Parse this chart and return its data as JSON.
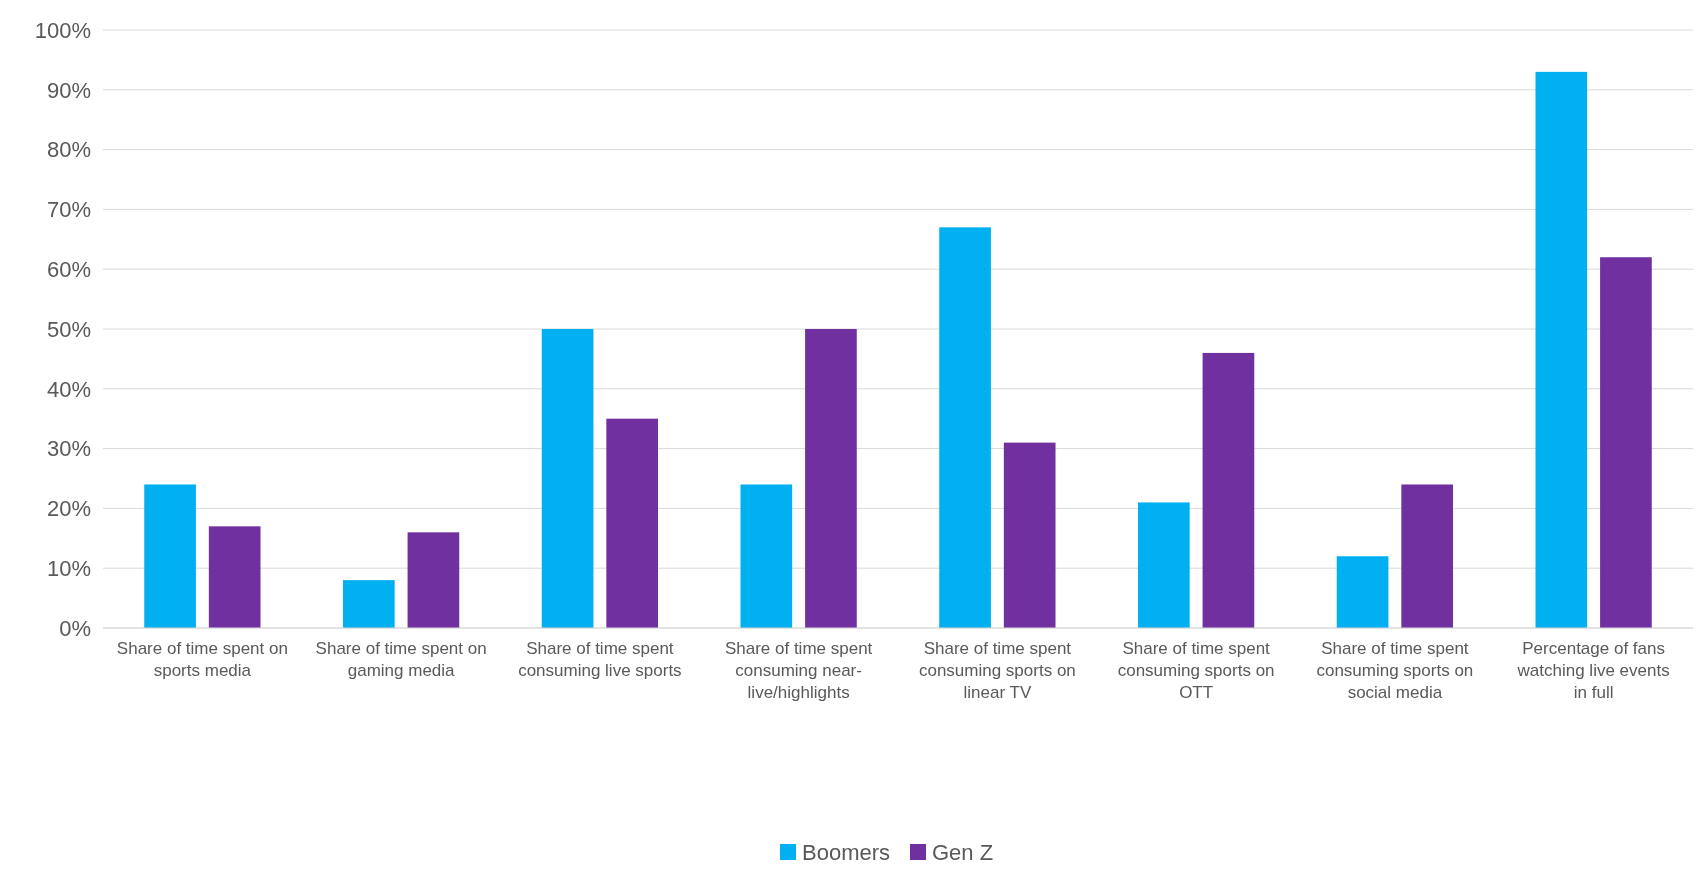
{
  "chart_data": {
    "type": "bar",
    "categories": [
      "Share of time spent on sports media",
      "Share of time spent on gaming media",
      "Share of time spent consuming live sports",
      "Share of time spent consuming near-live/highlights",
      "Share of time spent consuming sports on linear TV",
      "Share of time spent consuming sports on OTT",
      "Share of time spent consuming sports on social media",
      "Percentage of fans watching live events in full"
    ],
    "series": [
      {
        "name": "Boomers",
        "color": "#00b0f0",
        "values": [
          24,
          8,
          50,
          24,
          67,
          21,
          12,
          93
        ]
      },
      {
        "name": "Gen Z",
        "color": "#7030a0",
        "values": [
          17,
          16,
          35,
          50,
          31,
          46,
          24,
          62
        ]
      }
    ],
    "ylim": [
      0,
      100
    ],
    "yticks": [
      {
        "value": 0,
        "label": "0%"
      },
      {
        "value": 10,
        "label": "10%"
      },
      {
        "value": 20,
        "label": "20%"
      },
      {
        "value": 30,
        "label": "30%"
      },
      {
        "value": 40,
        "label": "40%"
      },
      {
        "value": 50,
        "label": "50%"
      },
      {
        "value": 60,
        "label": "60%"
      },
      {
        "value": 70,
        "label": "70%"
      },
      {
        "value": 80,
        "label": "80%"
      },
      {
        "value": 90,
        "label": "90%"
      },
      {
        "value": 100,
        "label": "100%"
      }
    ],
    "grid": "y",
    "legend": "bottom"
  }
}
